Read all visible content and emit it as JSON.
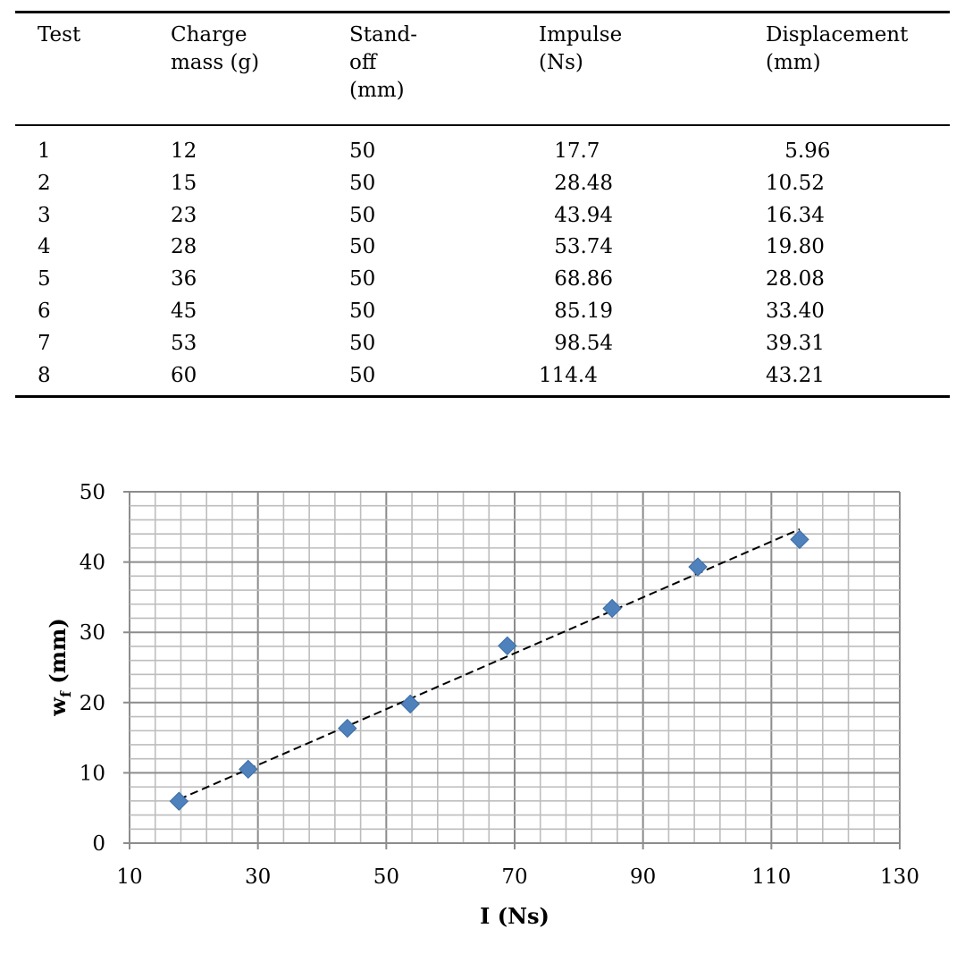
{
  "table": {
    "headers": [
      "Test",
      "Charge\nmass (g)",
      "Stand-\noff\n(mm)",
      "Impulse\n(Ns)",
      "Displacement\n(mm)"
    ],
    "rows": [
      [
        "1",
        "12",
        "50",
        "17.7",
        "5.96"
      ],
      [
        "2",
        "15",
        "50",
        "28.48",
        "10.52"
      ],
      [
        "3",
        "23",
        "50",
        "43.94",
        "16.34"
      ],
      [
        "4",
        "28",
        "50",
        "53.74",
        "19.80"
      ],
      [
        "5",
        "36",
        "50",
        "68.86",
        "28.08"
      ],
      [
        "6",
        "45",
        "50",
        "85.19",
        "33.40"
      ],
      [
        "7",
        "53",
        "50",
        "98.54",
        "39.31"
      ],
      [
        "8",
        "60",
        "50",
        "114.4",
        "43.21"
      ]
    ]
  },
  "chart_data": {
    "type": "scatter",
    "title": "",
    "xlabel": "I (Ns)",
    "ylabel_main": "w",
    "ylabel_sub": "f",
    "ylabel_unit": " (mm)",
    "xlim": [
      10,
      130
    ],
    "ylim": [
      0,
      50
    ],
    "xticks": [
      "10",
      "30",
      "50",
      "70",
      "90",
      "110",
      "130"
    ],
    "yticks": [
      "0",
      "10",
      "20",
      "30",
      "40",
      "50"
    ],
    "x_minor_step": 4,
    "y_minor_step": 2,
    "grid": true,
    "trendline": "linear, dashed",
    "marker_color": "#4f81bd",
    "series": [
      {
        "name": "Displacement",
        "x": [
          17.7,
          28.48,
          43.94,
          53.74,
          68.86,
          85.19,
          98.54,
          114.4
        ],
        "y": [
          5.96,
          10.52,
          16.34,
          19.8,
          28.08,
          33.4,
          39.31,
          43.21
        ]
      }
    ]
  }
}
